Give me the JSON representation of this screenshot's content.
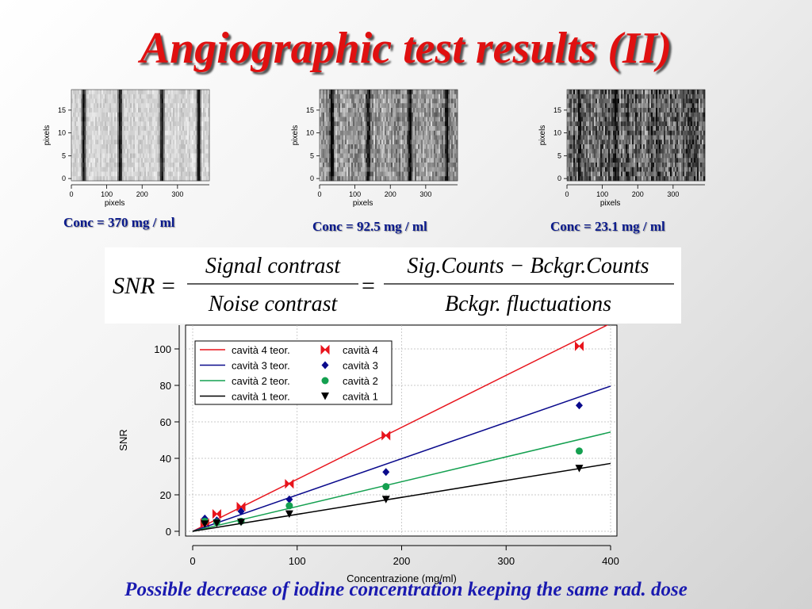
{
  "slide": {
    "title": "Angiographic test results (II)",
    "footnote": "Possible decrease of iodine concentration keeping the same rad. dose"
  },
  "formula": {
    "lhs": "SNR",
    "eq": "=",
    "frac1_num": "Signal contrast",
    "frac1_den": "Noise contrast",
    "frac2_num": "Sig.Counts − Bckgr.Counts",
    "frac2_den": "Bckgr. fluctuations"
  },
  "panels": [
    {
      "caption": "Conc = 370 mg / ml",
      "xlabel": "pixels",
      "ylabel": "pixels",
      "xticks": [
        "0",
        "100",
        "200",
        "300"
      ],
      "yticks": [
        "0",
        "5",
        "10",
        "15"
      ],
      "stripe_x": [
        35,
        138,
        256,
        360
      ],
      "stripe_strength": 0.92,
      "noise": 0.15,
      "background": 0.12
    },
    {
      "caption": "Conc = 92.5 mg / ml",
      "xlabel": "pixels",
      "ylabel": "pixels",
      "xticks": [
        "0",
        "100",
        "200",
        "300"
      ],
      "yticks": [
        "0",
        "5",
        "10",
        "15"
      ],
      "stripe_x": [
        35,
        138,
        256,
        360
      ],
      "stripe_strength": 0.65,
      "noise": 0.35,
      "background": 0.3
    },
    {
      "caption": "Conc = 23.1 mg / ml",
      "xlabel": "pixels",
      "ylabel": "pixels",
      "xticks": [
        "0",
        "100",
        "200",
        "300"
      ],
      "yticks": [
        "0",
        "5",
        "10",
        "15"
      ],
      "stripe_x": [
        35,
        138,
        256,
        360
      ],
      "stripe_strength": 0.3,
      "noise": 0.5,
      "background": 0.45
    }
  ],
  "chart_data": {
    "type": "scatter",
    "xlabel": "Concentrazione (mg/ml)",
    "ylabel": "SNR",
    "xlim": [
      0,
      400
    ],
    "ylim": [
      -2,
      113
    ],
    "xticks": [
      0,
      100,
      200,
      300,
      400
    ],
    "yticks": [
      0,
      20,
      40,
      60,
      80,
      100
    ],
    "grid": true,
    "legend_position": "top-left",
    "series": [
      {
        "name": "cavità 4",
        "fit_name": "cavità 4 teor.",
        "color": "#e8141c",
        "marker": "bowtie",
        "x": [
          11.6,
          23.1,
          46.3,
          92.5,
          185,
          370
        ],
        "y": [
          4.5,
          9.5,
          13.5,
          26,
          52.5,
          101.5
        ],
        "fit_slope": 0.285
      },
      {
        "name": "cavità 3",
        "fit_name": "cavità 3 teor.",
        "color": "#0a0a8c",
        "marker": "diamond",
        "x": [
          11.6,
          23.1,
          46.3,
          92.5,
          185,
          370
        ],
        "y": [
          7,
          6,
          11,
          17.5,
          32.5,
          69
        ],
        "fit_slope": 0.199
      },
      {
        "name": "cavità 2",
        "fit_name": "cavità 2 teor.",
        "color": "#14a050",
        "marker": "circle",
        "x": [
          11.6,
          23.1,
          46.3,
          92.5,
          185,
          370
        ],
        "y": [
          5.5,
          5,
          5.5,
          14,
          24.5,
          44
        ],
        "fit_slope": 0.136
      },
      {
        "name": "cavità 1",
        "fit_name": "cavità 1 teor.",
        "color": "#000000",
        "marker": "triangle-down",
        "x": [
          11.6,
          23.1,
          46.3,
          92.5,
          185,
          370
        ],
        "y": [
          4,
          4.5,
          5,
          9.5,
          17.5,
          34.5
        ],
        "fit_slope": 0.093
      }
    ]
  }
}
